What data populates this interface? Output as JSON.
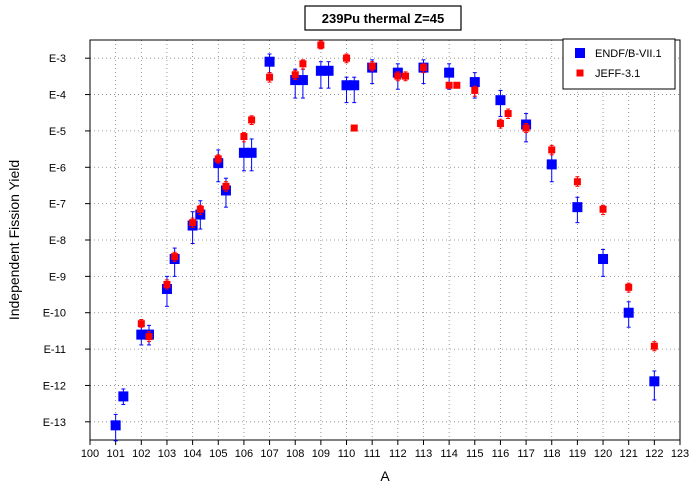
{
  "chart_data": {
    "type": "scatter",
    "title": "239Pu thermal Z=45",
    "xlabel": "A",
    "ylabel": "Independent Fission Yield",
    "x_range": [
      100,
      123
    ],
    "x_ticks": [
      "100",
      "101",
      "102",
      "103",
      "104",
      "105",
      "106",
      "107",
      "108",
      "109",
      "110",
      "111",
      "112",
      "113",
      "114",
      "115",
      "116",
      "117",
      "118",
      "119",
      "120",
      "121",
      "122",
      "123"
    ],
    "y_scale": "log",
    "y_range_exponent": [
      -13.5,
      -2.5
    ],
    "y_ticks": [
      {
        "label": "E-3",
        "exponent": -3
      },
      {
        "label": "E-4",
        "exponent": -4
      },
      {
        "label": "E-5",
        "exponent": -5
      },
      {
        "label": "E-6",
        "exponent": -6
      },
      {
        "label": "E-7",
        "exponent": -7
      },
      {
        "label": "E-8",
        "exponent": -8
      },
      {
        "label": "E-9",
        "exponent": -9
      },
      {
        "label": "E-10",
        "exponent": -10
      },
      {
        "label": "E-11",
        "exponent": -11
      },
      {
        "label": "E-12",
        "exponent": -12
      },
      {
        "label": "E-13",
        "exponent": -13
      }
    ],
    "grid": true,
    "legend_position": "top-right",
    "series": [
      {
        "name": "ENDF/B-VII.1",
        "color": "#0000ff",
        "marker": "square-large",
        "points": [
          {
            "x": 101.0,
            "y": 8e-14,
            "lo": 3e-14,
            "hi": 1.6e-13
          },
          {
            "x": 101.3,
            "y": 5e-13,
            "lo": 3e-13,
            "hi": 8e-13
          },
          {
            "x": 102.0,
            "y": 2.5e-11,
            "lo": 1.3e-11,
            "hi": 4.5e-11
          },
          {
            "x": 102.3,
            "y": 2.5e-11,
            "lo": 1.3e-11,
            "hi": 4.5e-11
          },
          {
            "x": 103.0,
            "y": 4.5e-10,
            "lo": 1.5e-10,
            "hi": 1e-09
          },
          {
            "x": 103.3,
            "y": 3e-09,
            "lo": 1e-09,
            "hi": 6e-09
          },
          {
            "x": 104.0,
            "y": 2.5e-08,
            "lo": 8e-09,
            "hi": 6e-08
          },
          {
            "x": 104.3,
            "y": 5e-08,
            "lo": 2e-08,
            "hi": 1.2e-07
          },
          {
            "x": 105.0,
            "y": 1.3e-06,
            "lo": 4e-07,
            "hi": 3e-06
          },
          {
            "x": 105.3,
            "y": 2.3e-07,
            "lo": 8e-08,
            "hi": 5e-07
          },
          {
            "x": 106.0,
            "y": 2.5e-06,
            "lo": 8e-07,
            "hi": 6e-06
          },
          {
            "x": 106.3,
            "y": 2.5e-06,
            "lo": 8e-07,
            "hi": 6e-06
          },
          {
            "x": 107.0,
            "y": 0.0008,
            "lo": 0.0004,
            "hi": 0.0013
          },
          {
            "x": 108.0,
            "y": 0.00025,
            "lo": 8e-05,
            "hi": 0.0005
          },
          {
            "x": 108.3,
            "y": 0.00025,
            "lo": 8e-05,
            "hi": 0.0005
          },
          {
            "x": 109.0,
            "y": 0.00045,
            "lo": 0.00015,
            "hi": 0.0008
          },
          {
            "x": 109.3,
            "y": 0.00045,
            "lo": 0.00015,
            "hi": 0.0008
          },
          {
            "x": 110.0,
            "y": 0.00018,
            "lo": 6e-05,
            "hi": 0.0003
          },
          {
            "x": 110.3,
            "y": 0.00018,
            "lo": 6e-05,
            "hi": 0.0003
          },
          {
            "x": 111.0,
            "y": 0.00055,
            "lo": 0.0002,
            "hi": 0.0009
          },
          {
            "x": 112.0,
            "y": 0.0004,
            "lo": 0.00014,
            "hi": 0.0007
          },
          {
            "x": 113.0,
            "y": 0.00055,
            "lo": 0.0002,
            "hi": 0.0009
          },
          {
            "x": 114.0,
            "y": 0.0004,
            "lo": 0.00014,
            "hi": 0.0007
          },
          {
            "x": 115.0,
            "y": 0.00022,
            "lo": 8e-05,
            "hi": 0.0004
          },
          {
            "x": 116.0,
            "y": 7e-05,
            "lo": 2.5e-05,
            "hi": 0.00013
          },
          {
            "x": 117.0,
            "y": 1.5e-05,
            "lo": 5e-06,
            "hi": 3e-05
          },
          {
            "x": 118.0,
            "y": 1.2e-06,
            "lo": 4e-07,
            "hi": 2.5e-06
          },
          {
            "x": 119.0,
            "y": 8e-08,
            "lo": 3e-08,
            "hi": 1.5e-07
          },
          {
            "x": 120.0,
            "y": 3e-09,
            "lo": 1e-09,
            "hi": 5.5e-09
          },
          {
            "x": 121.0,
            "y": 1e-10,
            "lo": 4e-11,
            "hi": 2e-10
          },
          {
            "x": 122.0,
            "y": 1.3e-12,
            "lo": 4e-13,
            "hi": 2.5e-12
          }
        ]
      },
      {
        "name": "JEFF-3.1",
        "color": "#ff0000",
        "marker": "square-small",
        "points": [
          {
            "x": 102.0,
            "y": 5e-11,
            "lo": 4e-11,
            "hi": 6.5e-11
          },
          {
            "x": 102.3,
            "y": 2.2e-11,
            "lo": 1.6e-11,
            "hi": 3e-11
          },
          {
            "x": 103.0,
            "y": 6e-10,
            "lo": 4.5e-10,
            "hi": 8e-10
          },
          {
            "x": 103.3,
            "y": 3.5e-09,
            "lo": 2.6e-09,
            "hi": 4.6e-09
          },
          {
            "x": 104.0,
            "y": 3e-08,
            "lo": 2.2e-08,
            "hi": 4e-08
          },
          {
            "x": 104.3,
            "y": 7e-08,
            "lo": 5e-08,
            "hi": 9e-08
          },
          {
            "x": 105.0,
            "y": 1.7e-06,
            "lo": 1.3e-06,
            "hi": 2.2e-06
          },
          {
            "x": 105.3,
            "y": 3e-07,
            "lo": 2.2e-07,
            "hi": 4e-07
          },
          {
            "x": 106.0,
            "y": 7e-06,
            "lo": 5e-06,
            "hi": 9e-06
          },
          {
            "x": 106.3,
            "y": 2e-05,
            "lo": 1.5e-05,
            "hi": 2.6e-05
          },
          {
            "x": 107.0,
            "y": 0.0003,
            "lo": 0.00022,
            "hi": 0.0004
          },
          {
            "x": 108.0,
            "y": 0.00035,
            "lo": 0.00026,
            "hi": 0.00046
          },
          {
            "x": 108.3,
            "y": 0.0007,
            "lo": 0.0005,
            "hi": 0.0009
          },
          {
            "x": 109.0,
            "y": 0.0023,
            "lo": 0.0018,
            "hi": 0.003
          },
          {
            "x": 110.0,
            "y": 0.001,
            "lo": 0.00075,
            "hi": 0.0013
          },
          {
            "x": 110.3,
            "y": 1.2e-05,
            "lo": 1.2e-05,
            "hi": 1.2e-05
          },
          {
            "x": 111.0,
            "y": 0.0006,
            "lo": 0.00045,
            "hi": 0.0008
          },
          {
            "x": 112.0,
            "y": 0.00032,
            "lo": 0.00024,
            "hi": 0.00042
          },
          {
            "x": 112.3,
            "y": 0.00032,
            "lo": 0.00024,
            "hi": 0.00042
          },
          {
            "x": 113.0,
            "y": 0.00055,
            "lo": 0.0004,
            "hi": 0.0007
          },
          {
            "x": 114.0,
            "y": 0.00018,
            "lo": 0.00018,
            "hi": 0.00018
          },
          {
            "x": 114.3,
            "y": 0.00018,
            "lo": 0.00018,
            "hi": 0.00018
          },
          {
            "x": 115.0,
            "y": 0.00013,
            "lo": 9e-05,
            "hi": 0.00017
          },
          {
            "x": 116.0,
            "y": 1.6e-05,
            "lo": 1.2e-05,
            "hi": 2.1e-05
          },
          {
            "x": 116.3,
            "y": 3e-05,
            "lo": 2.2e-05,
            "hi": 4e-05
          },
          {
            "x": 117.0,
            "y": 1.2e-05,
            "lo": 9e-06,
            "hi": 1.6e-05
          },
          {
            "x": 118.0,
            "y": 3e-06,
            "lo": 2.2e-06,
            "hi": 4e-06
          },
          {
            "x": 119.0,
            "y": 4e-07,
            "lo": 3e-07,
            "hi": 5.5e-07
          },
          {
            "x": 120.0,
            "y": 7e-08,
            "lo": 5e-08,
            "hi": 9e-08
          },
          {
            "x": 121.0,
            "y": 5e-10,
            "lo": 3.7e-10,
            "hi": 6.5e-10
          },
          {
            "x": 122.0,
            "y": 1.2e-11,
            "lo": 9e-12,
            "hi": 1.6e-11
          }
        ]
      }
    ]
  }
}
